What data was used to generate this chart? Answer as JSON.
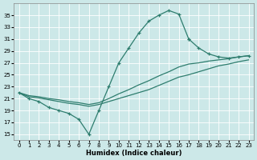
{
  "xlabel": "Humidex (Indice chaleur)",
  "bg_color": "#cce8e8",
  "grid_color": "#ffffff",
  "line_color": "#2e7d6e",
  "xlim": [
    -0.5,
    23.5
  ],
  "ylim": [
    14,
    37
  ],
  "yticks": [
    15,
    17,
    19,
    21,
    23,
    25,
    27,
    29,
    31,
    33,
    35
  ],
  "xticks": [
    0,
    1,
    2,
    3,
    4,
    5,
    6,
    7,
    8,
    9,
    10,
    11,
    12,
    13,
    14,
    15,
    16,
    17,
    18,
    19,
    20,
    21,
    22,
    23
  ],
  "line1_x": [
    0,
    1,
    2,
    3,
    4,
    5,
    6,
    7,
    8,
    9,
    10,
    11,
    12,
    13,
    14,
    15,
    16,
    17
  ],
  "line1_y": [
    22.0,
    21.0,
    20.5,
    19.5,
    19.0,
    18.5,
    17.5,
    15.0,
    19.0,
    23.0,
    27.0,
    29.5,
    32.0,
    34.0,
    35.0,
    35.8,
    35.2,
    31.0
  ],
  "line2_x": [
    0,
    1,
    2,
    3,
    4,
    5,
    6,
    7,
    8,
    9,
    10,
    11,
    12,
    13,
    14,
    15,
    16,
    17,
    18,
    19,
    20,
    21,
    22,
    23
  ],
  "line2_y": [
    22.0,
    21.5,
    21.3,
    21.0,
    20.8,
    20.5,
    20.3,
    20.0,
    20.3,
    21.0,
    21.8,
    22.5,
    23.3,
    24.0,
    24.8,
    25.5,
    26.3,
    26.8,
    27.0,
    27.3,
    27.5,
    27.7,
    28.0,
    28.2
  ],
  "line3_x": [
    0,
    1,
    2,
    3,
    4,
    5,
    6,
    7,
    8,
    9,
    10,
    11,
    12,
    13,
    14,
    15,
    16,
    17,
    18,
    19,
    20,
    21,
    22,
    23
  ],
  "line3_y": [
    22.0,
    21.3,
    21.1,
    20.8,
    20.5,
    20.2,
    20.0,
    19.7,
    20.0,
    20.5,
    21.0,
    21.5,
    22.0,
    22.5,
    23.2,
    23.9,
    24.6,
    25.0,
    25.5,
    26.0,
    26.5,
    26.8,
    27.2,
    27.5
  ],
  "line4_x": [
    17,
    18,
    19,
    20,
    21,
    22,
    23
  ],
  "line4_y": [
    31.0,
    29.5,
    28.5,
    28.0,
    27.8,
    28.0,
    28.2
  ],
  "marker_indices_l1": [
    0,
    1,
    2,
    3,
    4,
    5,
    6,
    7,
    8,
    9,
    10,
    11,
    12,
    13,
    14,
    15,
    16,
    17
  ],
  "marker_indices_l4": [
    0,
    1,
    2,
    3,
    4,
    5,
    6
  ]
}
